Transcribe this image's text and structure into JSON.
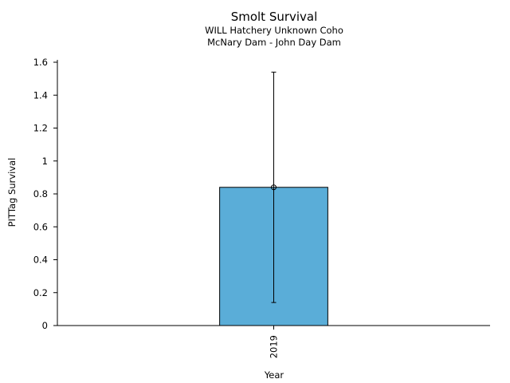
{
  "chart_data": {
    "type": "bar",
    "title": "Smolt Survival",
    "subtitle_1": "WILL Hatchery Unknown Coho",
    "subtitle_2": "McNary Dam - John Day Dam",
    "xlabel": "Year",
    "ylabel": "PITTag Survival",
    "categories": [
      "2019"
    ],
    "values": [
      0.84
    ],
    "error_low": [
      0.14
    ],
    "error_high": [
      1.54
    ],
    "ylim": [
      0,
      1.6
    ],
    "yticks": [
      0,
      0.2,
      0.4,
      0.6,
      0.8,
      1,
      1.2,
      1.4,
      1.6
    ],
    "ytick_labels": [
      "0",
      "0.2",
      "0.4",
      "0.6",
      "0.8",
      "1",
      "1.2",
      "1.4",
      "1.6"
    ],
    "bar_color": "#5aadd8",
    "grid": false,
    "legend": "none"
  }
}
